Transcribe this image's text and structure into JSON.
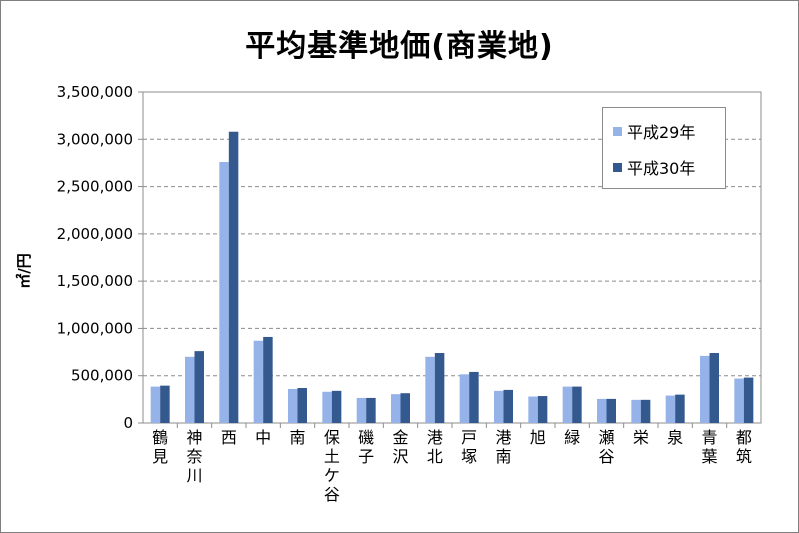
{
  "chart_data": {
    "type": "bar",
    "title": "平均基準地価(商業地)",
    "ylabel": "㎡/円",
    "xlabel": "",
    "ylim": [
      0,
      3500000
    ],
    "yticks": [
      0,
      500000,
      1000000,
      1500000,
      2000000,
      2500000,
      3000000,
      3500000
    ],
    "ytick_labels": [
      "0",
      "500,000",
      "1,000,000",
      "1,500,000",
      "2,000,000",
      "2,500,000",
      "3,000,000",
      "3,500,000"
    ],
    "grid": true,
    "legend_position": "top-right",
    "categories": [
      "鶴見",
      "神奈川",
      "西",
      "中",
      "南",
      "保土ケ谷",
      "磯子",
      "金沢",
      "港北",
      "戸塚",
      "港南",
      "旭",
      "緑",
      "瀬谷",
      "栄",
      "泉",
      "青葉",
      "都筑"
    ],
    "series": [
      {
        "name": "平成29年",
        "color": "#95b3e8",
        "values": [
          385000,
          700000,
          2760000,
          870000,
          360000,
          330000,
          265000,
          305000,
          700000,
          515000,
          340000,
          280000,
          385000,
          255000,
          245000,
          290000,
          710000,
          470000
        ]
      },
      {
        "name": "平成30年",
        "color": "#34598f",
        "values": [
          395000,
          760000,
          3080000,
          910000,
          370000,
          340000,
          265000,
          315000,
          740000,
          540000,
          350000,
          285000,
          385000,
          255000,
          245000,
          300000,
          740000,
          480000
        ]
      }
    ]
  }
}
